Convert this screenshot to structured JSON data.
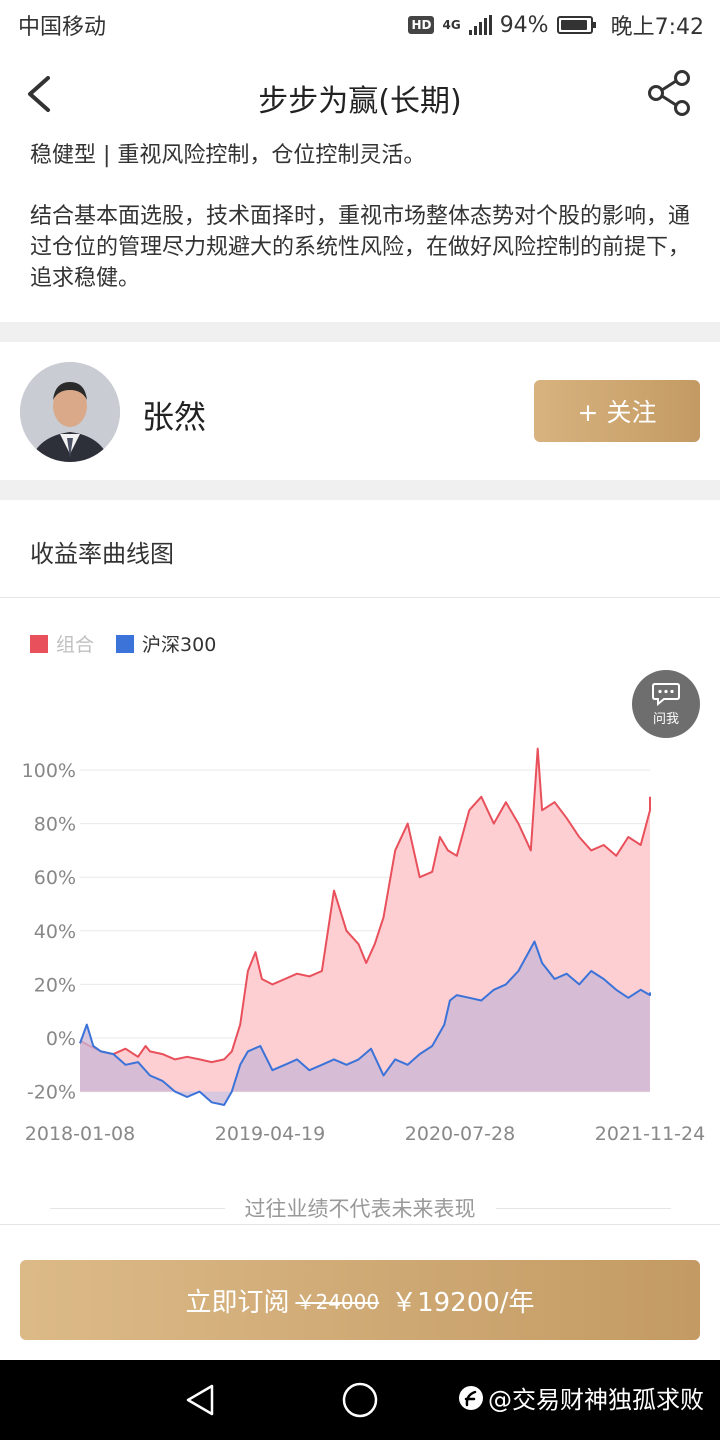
{
  "status_bar": {
    "carrier": "中国移动",
    "hd": "HD",
    "network": "4G",
    "battery": "94%",
    "battery_level": 0.94,
    "time": "晚上7:42"
  },
  "header": {
    "title": "步步为赢(长期)"
  },
  "description": {
    "type_line": "稳健型 | 重视风险控制，仓位控制灵活。",
    "detail": "结合基本面选股，技术面择时，重视市场整体态势对个股的影响，通过仓位的管理尽力规避大的系统性风险，在做好风险控制的前提下，追求稳健。"
  },
  "manager": {
    "name": "张然",
    "follow_label": "+ 关注"
  },
  "chart_section": {
    "title": "收益率曲线图",
    "ask_label": "问我",
    "disclaimer": "过往业绩不代表未来表现"
  },
  "chart_data": {
    "type": "area",
    "y_ticks": [
      "100%",
      "80%",
      "60%",
      "40%",
      "20%",
      "0%",
      "-20%"
    ],
    "x_ticks": [
      "2018-01-08",
      "2019-04-19",
      "2020-07-28",
      "2021-11-24"
    ],
    "ylim": [
      -20,
      110
    ],
    "xlim": [
      "2018-01-08",
      "2021-12-20"
    ],
    "grid": true,
    "legend_position": "top-left",
    "series": [
      {
        "name": "组合",
        "color": "#e8505b",
        "fill": "#fdcfd3",
        "x": [
          "2018-01-08",
          "2018-02-01",
          "2018-03-01",
          "2018-04-01",
          "2018-05-01",
          "2018-06-01",
          "2018-06-20",
          "2018-07-01",
          "2018-08-01",
          "2018-09-01",
          "2018-10-01",
          "2018-11-01",
          "2018-12-01",
          "2019-01-01",
          "2019-01-20",
          "2019-02-10",
          "2019-03-01",
          "2019-03-20",
          "2019-04-05",
          "2019-05-01",
          "2019-06-01",
          "2019-07-01",
          "2019-08-01",
          "2019-09-01",
          "2019-10-01",
          "2019-11-01",
          "2019-12-01",
          "2019-12-20",
          "2020-01-10",
          "2020-02-01",
          "2020-03-01",
          "2020-04-01",
          "2020-05-01",
          "2020-06-01",
          "2020-06-20",
          "2020-07-10",
          "2020-08-01",
          "2020-09-01",
          "2020-10-01",
          "2020-11-01",
          "2020-12-01",
          "2021-01-01",
          "2021-02-01",
          "2021-02-18",
          "2021-03-01",
          "2021-04-01",
          "2021-05-01",
          "2021-06-01",
          "2021-07-01",
          "2021-08-01",
          "2021-09-01",
          "2021-10-01",
          "2021-11-01",
          "2021-12-01",
          "2021-12-20"
        ],
        "y": [
          -1,
          -3,
          -5,
          -6,
          -4,
          -7,
          -3,
          -5,
          -6,
          -8,
          -7,
          -8,
          -9,
          -8,
          -5,
          5,
          25,
          32,
          22,
          20,
          22,
          24,
          23,
          25,
          55,
          40,
          35,
          28,
          35,
          45,
          70,
          80,
          60,
          62,
          75,
          70,
          68,
          85,
          90,
          80,
          88,
          80,
          70,
          108,
          85,
          88,
          82,
          75,
          70,
          72,
          68,
          75,
          72,
          85,
          90
        ]
      },
      {
        "name": "沪深300",
        "color": "#3b73d9",
        "fill": "#c9b6d6",
        "x": [
          "2018-01-08",
          "2018-01-25",
          "2018-02-10",
          "2018-03-01",
          "2018-04-01",
          "2018-05-01",
          "2018-06-01",
          "2018-07-01",
          "2018-08-01",
          "2018-09-01",
          "2018-10-01",
          "2018-11-01",
          "2018-12-01",
          "2019-01-01",
          "2019-01-20",
          "2019-02-10",
          "2019-03-01",
          "2019-04-01",
          "2019-05-01",
          "2019-06-01",
          "2019-07-01",
          "2019-08-01",
          "2019-09-01",
          "2019-10-01",
          "2019-11-01",
          "2019-12-01",
          "2020-01-01",
          "2020-02-01",
          "2020-03-01",
          "2020-04-01",
          "2020-05-01",
          "2020-06-01",
          "2020-07-01",
          "2020-07-15",
          "2020-08-01",
          "2020-09-01",
          "2020-10-01",
          "2020-11-01",
          "2020-12-01",
          "2021-01-01",
          "2021-02-10",
          "2021-03-01",
          "2021-04-01",
          "2021-05-01",
          "2021-06-01",
          "2021-07-01",
          "2021-08-01",
          "2021-09-01",
          "2021-10-01",
          "2021-11-01",
          "2021-12-01",
          "2021-12-20"
        ],
        "y": [
          -2,
          5,
          -3,
          -5,
          -6,
          -10,
          -9,
          -14,
          -16,
          -20,
          -22,
          -20,
          -24,
          -25,
          -20,
          -10,
          -5,
          -3,
          -12,
          -10,
          -8,
          -12,
          -10,
          -8,
          -10,
          -8,
          -4,
          -14,
          -8,
          -10,
          -6,
          -3,
          5,
          14,
          16,
          15,
          14,
          18,
          20,
          25,
          36,
          28,
          22,
          24,
          20,
          25,
          22,
          18,
          15,
          18,
          16,
          17
        ]
      }
    ]
  },
  "subscribe": {
    "label": "立即订阅",
    "old_price": "￥24000",
    "price": "￥19200/年"
  },
  "watermark": {
    "text": "@交易财神独孤求败"
  },
  "colors": {
    "accent_gold": "#c9a26c",
    "portfolio_red": "#e8505b",
    "index_blue": "#3b73d9"
  }
}
